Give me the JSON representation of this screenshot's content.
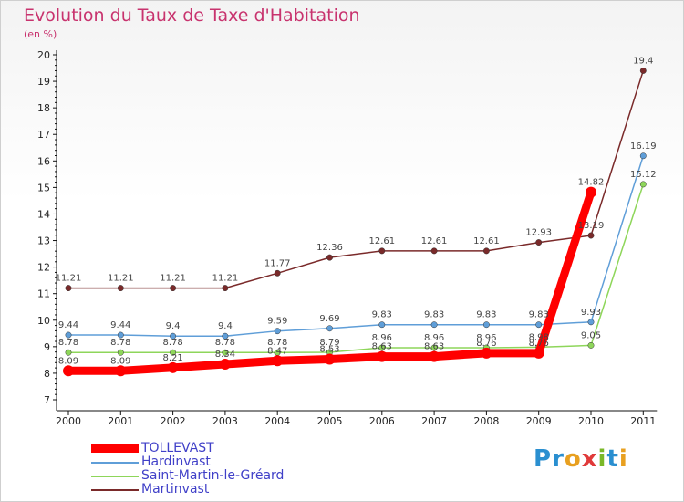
{
  "title": "Evolution du Taux de Taxe d'Habitation",
  "subtitle": "(en %)",
  "logo_text": "Proxiti",
  "logo_letters": [
    {
      "ch": "P",
      "color": "#2a8fd0"
    },
    {
      "ch": "r",
      "color": "#2a8fd0"
    },
    {
      "ch": "o",
      "color": "#e8a020"
    },
    {
      "ch": "x",
      "color": "#e03a3a"
    },
    {
      "ch": "i",
      "color": "#7ab828"
    },
    {
      "ch": "t",
      "color": "#2a8fd0"
    },
    {
      "ch": "i",
      "color": "#e8a020"
    }
  ],
  "chart_data": {
    "type": "line",
    "title": "Evolution du Taux de Taxe d'Habitation",
    "ylabel": "(en %)",
    "xlabel": "",
    "ylim": [
      7,
      20
    ],
    "yticks": [
      7,
      8,
      9,
      10,
      11,
      12,
      13,
      14,
      15,
      16,
      17,
      18,
      19,
      20
    ],
    "x": [
      "2000",
      "2001",
      "2002",
      "2003",
      "2004",
      "2005",
      "2006",
      "2007",
      "2008",
      "2009",
      "2010",
      "2011"
    ],
    "grid": false,
    "legend_position": "bottom-left",
    "series": [
      {
        "name": "Martinvast",
        "color": "#7a2a2a",
        "values": [
          11.21,
          11.21,
          11.21,
          11.21,
          11.77,
          12.36,
          12.61,
          12.61,
          12.61,
          12.93,
          13.19,
          19.4
        ],
        "labels": [
          "11.21",
          "11.21",
          "11.21",
          "11.21",
          "11.77",
          "12.36",
          "12.61",
          "12.61",
          "12.61",
          "12.93",
          "13.19",
          "19.4"
        ]
      },
      {
        "name": "Hardinvast",
        "color": "#5f9ed8",
        "values": [
          9.44,
          9.44,
          9.4,
          9.4,
          9.59,
          9.69,
          9.83,
          9.83,
          9.83,
          9.83,
          9.93,
          16.19
        ],
        "labels": [
          "9.44",
          "9.44",
          "9.4",
          "9.4",
          "9.59",
          "9.69",
          "9.83",
          "9.83",
          "9.83",
          "9.83",
          "9.93",
          "16.19"
        ]
      },
      {
        "name": "Saint-Martin-le-Gréard",
        "color": "#8ed65a",
        "values": [
          8.78,
          8.78,
          8.78,
          8.78,
          8.78,
          8.79,
          8.96,
          8.96,
          8.96,
          8.98,
          9.05,
          15.12
        ],
        "labels": [
          "8.78",
          "8.78",
          "8.78",
          "8.78",
          "8.78",
          "8.79",
          "8.96",
          "8.96",
          "8.96",
          "8.98",
          "9.05",
          "15.12"
        ]
      },
      {
        "name": "TOLLEVAST",
        "color": "#ff0000",
        "values": [
          8.09,
          8.09,
          8.21,
          8.34,
          8.47,
          8.53,
          8.63,
          8.63,
          8.76,
          8.76,
          14.82,
          null
        ],
        "labels": [
          "8.09",
          "8.09",
          "8.21",
          "8.34",
          "8.47",
          "8.53",
          "8.63",
          "8.63",
          "8.76",
          "8.76",
          "14.82",
          ""
        ]
      }
    ]
  },
  "legend": [
    {
      "name": "TOLLEVAST",
      "color": "#ff0000",
      "thick": true
    },
    {
      "name": "Hardinvast",
      "color": "#5f9ed8",
      "thick": false
    },
    {
      "name": "Saint-Martin-le-Gréard",
      "color": "#8ed65a",
      "thick": false
    },
    {
      "name": "Martinvast",
      "color": "#7a2a2a",
      "thick": false
    }
  ]
}
